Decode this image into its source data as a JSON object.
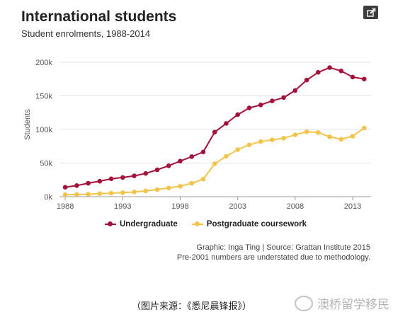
{
  "header": {
    "title": "International students",
    "subtitle": "Student enrolments, 1988-2014",
    "share_icon": "share-icon"
  },
  "chart_data": {
    "type": "line",
    "title": "International students",
    "subtitle": "Student enrolments, 1988-2014",
    "xlabel": "",
    "ylabel": "Students",
    "x": [
      1988,
      1989,
      1990,
      1991,
      1992,
      1993,
      1994,
      1995,
      1996,
      1997,
      1998,
      1999,
      2000,
      2001,
      2002,
      2003,
      2004,
      2005,
      2006,
      2007,
      2008,
      2009,
      2010,
      2011,
      2012,
      2013,
      2014
    ],
    "series": [
      {
        "name": "Undergraduate",
        "color": "#a3123a",
        "values": [
          14000,
          16500,
          20000,
          23000,
          26500,
          28500,
          31000,
          34500,
          40000,
          46000,
          53000,
          59500,
          66500,
          96000,
          109000,
          122000,
          132000,
          136500,
          142500,
          147500,
          158000,
          173500,
          185000,
          192000,
          187000,
          178000,
          175000
        ]
      },
      {
        "name": "Postgraduate coursework",
        "color": "#f2c44c",
        "values": [
          3000,
          3200,
          3600,
          4500,
          5200,
          6000,
          7000,
          8500,
          10500,
          13000,
          15500,
          20000,
          26000,
          49000,
          60000,
          70000,
          77000,
          82000,
          84500,
          87000,
          92000,
          96500,
          95500,
          89000,
          85500,
          90000,
          102000
        ]
      }
    ],
    "xticks": [
      "1988",
      "1993",
      "1998",
      "2003",
      "2008",
      "2013"
    ],
    "xtick_values": [
      1988,
      1993,
      1998,
      2003,
      2008,
      2013
    ],
    "yticks": [
      "0k",
      "50k",
      "100k",
      "150k",
      "200k"
    ],
    "ytick_values": [
      0,
      50000,
      100000,
      150000,
      200000
    ],
    "xlim": [
      1987.5,
      2014.6
    ],
    "ylim": [
      0,
      200000
    ],
    "grid": true,
    "legend_position": "bottom"
  },
  "credits": {
    "line1": "Graphic: Inga Ting | Source: Grattan Institute 2015",
    "line2": "Pre-2001 numbers are understated due to methodology."
  },
  "footer": {
    "caption": "（图片来源：《悉尼晨锋报》）",
    "brand": "澳桥留学移民",
    "brand_icon": "wechat-icon"
  }
}
